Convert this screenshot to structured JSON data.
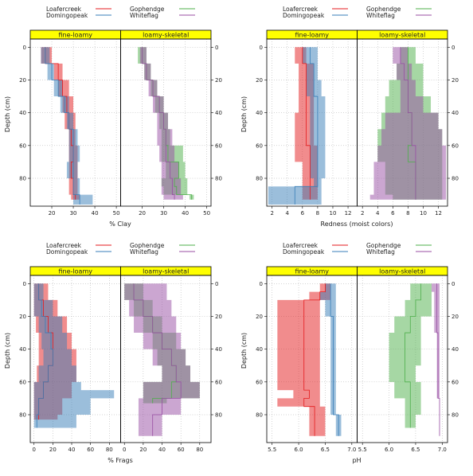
{
  "colors": {
    "Loafercreek": "#e41a1c",
    "Domingopeak": "#377eb8",
    "Gophendge": "#4daf4a",
    "Whiteflag": "#984ea3",
    "strip": "#ffff00"
  },
  "legend": {
    "left": [
      "Loafercreek",
      "Domingopeak"
    ],
    "right": [
      "Gophendge",
      "Whiteflag"
    ]
  },
  "chart_data": [
    {
      "type": "area",
      "xlabel": "% Clay",
      "ylabel": "Depth (cm)",
      "xticks": [
        20,
        30,
        40,
        50
      ],
      "xlim": [
        10,
        52
      ],
      "ylim": [
        97,
        -5
      ],
      "yticks": [
        0,
        20,
        40,
        60,
        80
      ],
      "panels": [
        {
          "strip": "fine-loamy",
          "series": [
            {
              "name": "Loafercreek",
              "depth": [
                0,
                10,
                20,
                30,
                40,
                50,
                60,
                70,
                80,
                90
              ],
              "lo": [
                15,
                21,
                23,
                25,
                26,
                28,
                28,
                28,
                28,
                29
              ],
              "hi": [
                20,
                25,
                28,
                30,
                31,
                31,
                32,
                32,
                32,
                33
              ],
              "med": [
                17,
                23,
                25,
                27,
                28,
                29,
                30,
                29,
                30,
                31
              ]
            },
            {
              "name": "Domingopeak",
              "depth": [
                0,
                10,
                20,
                30,
                40,
                50,
                60,
                70,
                80,
                90,
                93
              ],
              "lo": [
                15,
                18,
                21,
                24,
                27,
                28,
                28,
                27,
                30,
                30,
                30
              ],
              "hi": [
                19,
                21,
                25,
                28,
                30,
                32,
                33,
                32,
                33,
                39,
                39
              ],
              "med": [
                17,
                20,
                23,
                26,
                28,
                30,
                30,
                30,
                30,
                33,
                33
              ]
            }
          ]
        },
        {
          "strip": "loamy-skeletal",
          "series": [
            {
              "name": "Gophendge",
              "depth": [
                0,
                10,
                20,
                30,
                40,
                50,
                60,
                70,
                80,
                85,
                90
              ],
              "lo": [
                18,
                21,
                24,
                26,
                28,
                29,
                29,
                31,
                29,
                30,
                42
              ],
              "hi": [
                22,
                24,
                27,
                30,
                32,
                33,
                39,
                40,
                41,
                41,
                44
              ],
              "med": [
                20,
                22,
                25,
                28,
                30,
                31,
                32,
                37,
                35,
                36,
                43
              ]
            },
            {
              "name": "Whiteflag",
              "depth": [
                0,
                10,
                20,
                30,
                40,
                50,
                60,
                70,
                80,
                90
              ],
              "lo": [
                19,
                21,
                23,
                25,
                27,
                27,
                28,
                29,
                29,
                30
              ],
              "hi": [
                22,
                24,
                27,
                30,
                32,
                34,
                35,
                37,
                38,
                39
              ],
              "med": [
                20,
                22,
                25,
                28,
                30,
                31,
                31,
                33,
                34,
                35
              ]
            }
          ]
        }
      ]
    },
    {
      "type": "area",
      "xlabel": "Redness (moist colors)",
      "ylabel": "Depth (cm)",
      "xticks": [
        2,
        4,
        6,
        8,
        10,
        12
      ],
      "xlim": [
        1.3,
        13.2
      ],
      "ylim": [
        97,
        -5
      ],
      "yticks": [
        0,
        20,
        40,
        60,
        80
      ],
      "panels": [
        {
          "strip": "fine-loamy",
          "series": [
            {
              "name": "Loafercreek",
              "depth": [
                0,
                10,
                20,
                30,
                40,
                50,
                60,
                70,
                80,
                90
              ],
              "lo": [
                5,
                5.5,
                5.5,
                5.5,
                5,
                5,
                5,
                6,
                6,
                6
              ],
              "hi": [
                6.5,
                7.5,
                7.5,
                7.5,
                7.5,
                7.5,
                8,
                8,
                8,
                8
              ],
              "med": [
                6,
                6.5,
                6.5,
                6.5,
                6.5,
                6.5,
                7,
                7,
                7,
                7
              ]
            },
            {
              "name": "Domingopeak",
              "depth": [
                0,
                10,
                20,
                30,
                40,
                50,
                60,
                70,
                80,
                85,
                90,
                93
              ],
              "lo": [
                6,
                6.5,
                6.5,
                7,
                7,
                7,
                7,
                7,
                7.5,
                1.5,
                1.5,
                1.5
              ],
              "hi": [
                8,
                8,
                8.5,
                9,
                9,
                9,
                9,
                9,
                8.5,
                8.5,
                8.5,
                8.5
              ],
              "med": [
                7,
                7.5,
                7.5,
                8,
                8,
                8,
                8,
                8,
                8,
                5,
                5,
                5
              ]
            }
          ]
        },
        {
          "strip": "loamy-skeletal",
          "series": [
            {
              "name": "Gophendge",
              "depth": [
                0,
                10,
                20,
                30,
                40,
                50,
                60,
                70,
                80,
                90
              ],
              "lo": [
                7,
                6.5,
                5.5,
                5,
                4.5,
                4,
                4,
                5,
                5,
                6
              ],
              "hi": [
                9,
                10,
                10,
                11,
                12,
                12.5,
                12.5,
                12.5,
                12.5,
                12.5
              ],
              "med": [
                8,
                8,
                8,
                8,
                8.5,
                8.5,
                8,
                9,
                9,
                9
              ]
            },
            {
              "name": "Whiteflag",
              "depth": [
                0,
                10,
                20,
                30,
                40,
                50,
                60,
                70,
                80,
                90
              ],
              "lo": [
                6,
                6.5,
                7,
                7,
                5,
                4.5,
                4,
                3.5,
                3.5,
                3
              ],
              "hi": [
                8,
                8.5,
                9,
                10,
                12,
                12.5,
                13,
                13,
                13,
                13
              ],
              "med": [
                7,
                7.5,
                8,
                8,
                8.5,
                8.5,
                9,
                9,
                9,
                9
              ]
            }
          ]
        }
      ]
    },
    {
      "type": "area",
      "xlabel": "% Frags",
      "ylabel": "Depth (cm)",
      "xticks": [
        0,
        20,
        40,
        60,
        80
      ],
      "xlim": [
        -4,
        92
      ],
      "ylim": [
        97,
        -5
      ],
      "yticks": [
        0,
        20,
        40,
        60,
        80
      ],
      "panels": [
        {
          "strip": "fine-loamy",
          "series": [
            {
              "name": "Loafercreek",
              "depth": [
                0,
                10,
                20,
                30,
                40,
                50,
                60,
                70,
                80
              ],
              "lo": [
                0,
                0,
                2,
                5,
                5,
                3,
                0,
                0,
                0
              ],
              "hi": [
                15,
                25,
                35,
                40,
                45,
                45,
                40,
                30,
                25
              ],
              "med": [
                5,
                10,
                15,
                20,
                20,
                15,
                10,
                5,
                5
              ]
            },
            {
              "name": "Domingopeak",
              "depth": [
                0,
                10,
                20,
                30,
                40,
                50,
                60,
                65,
                70,
                80,
                85
              ],
              "lo": [
                0,
                0,
                5,
                8,
                10,
                5,
                0,
                0,
                0,
                0,
                0
              ],
              "hi": [
                10,
                20,
                30,
                35,
                40,
                45,
                50,
                85,
                60,
                45,
                45
              ],
              "med": [
                5,
                8,
                12,
                18,
                20,
                15,
                10,
                10,
                5,
                3,
                3
              ]
            }
          ]
        },
        {
          "strip": "loamy-skeletal",
          "series": [
            {
              "name": "Gophendge",
              "depth": [
                0,
                10,
                20,
                30,
                40,
                50,
                60,
                70
              ],
              "lo": [
                0,
                10,
                20,
                30,
                35,
                40,
                20,
                20
              ],
              "hi": [
                20,
                30,
                40,
                55,
                65,
                70,
                80,
                45
              ],
              "med": [
                10,
                20,
                30,
                40,
                50,
                55,
                50,
                30
              ]
            },
            {
              "name": "Whiteflag",
              "depth": [
                0,
                10,
                20,
                30,
                40,
                50,
                60,
                70,
                80,
                90
              ],
              "lo": [
                0,
                5,
                10,
                20,
                30,
                40,
                20,
                15,
                15,
                15
              ],
              "hi": [
                45,
                50,
                55,
                60,
                65,
                70,
                80,
                60,
                40,
                40
              ],
              "med": [
                10,
                20,
                30,
                40,
                50,
                55,
                60,
                40,
                30,
                30
              ]
            }
          ]
        }
      ]
    },
    {
      "type": "area",
      "xlabel": "pH",
      "ylabel": "Depth (cm)",
      "xticks": [
        5.5,
        6.0,
        6.5,
        7.0
      ],
      "xlim": [
        5.4,
        7.1
      ],
      "ylim": [
        97,
        -5
      ],
      "yticks": [
        0,
        20,
        40,
        60,
        80
      ],
      "panels": [
        {
          "strip": "fine-loamy",
          "series": [
            {
              "name": "Loafercreek",
              "depth": [
                0,
                5,
                10,
                20,
                30,
                40,
                50,
                60,
                65,
                70,
                75,
                80,
                90
              ],
              "lo": [
                6.4,
                6.2,
                5.6,
                5.6,
                5.6,
                5.6,
                5.6,
                5.6,
                5.9,
                5.6,
                6.2,
                6.2,
                6.2
              ],
              "hi": [
                6.6,
                6.6,
                6.4,
                6.4,
                6.4,
                6.4,
                6.4,
                6.4,
                6.4,
                6.4,
                6.5,
                6.5,
                6.5
              ],
              "med": [
                6.5,
                6.4,
                6.1,
                6.1,
                6.1,
                6.1,
                6.1,
                6.1,
                6.2,
                6.1,
                6.3,
                6.3,
                6.3
              ]
            },
            {
              "name": "Domingopeak",
              "depth": [
                0,
                5,
                10,
                20,
                30,
                40,
                50,
                60,
                70,
                80,
                90
              ],
              "lo": [
                6.5,
                6.4,
                6.5,
                6.6,
                6.6,
                6.6,
                6.6,
                6.6,
                6.6,
                6.7,
                6.7
              ],
              "hi": [
                6.7,
                6.7,
                6.7,
                6.7,
                6.7,
                6.7,
                6.7,
                6.7,
                6.7,
                6.8,
                6.8
              ],
              "med": [
                6.6,
                6.6,
                6.6,
                6.65,
                6.65,
                6.65,
                6.65,
                6.65,
                6.65,
                6.75,
                6.75
              ]
            }
          ]
        },
        {
          "strip": "loamy-skeletal",
          "series": [
            {
              "name": "Gophendge",
              "depth": [
                0,
                10,
                20,
                30,
                40,
                50,
                60,
                70,
                80,
                85
              ],
              "lo": [
                6.4,
                6.3,
                6.1,
                6.0,
                6.0,
                6.0,
                6.1,
                6.3,
                6.3,
                6.3
              ],
              "hi": [
                6.8,
                6.8,
                6.6,
                6.6,
                6.6,
                6.5,
                6.6,
                6.6,
                6.5,
                6.5
              ],
              "med": [
                6.6,
                6.5,
                6.4,
                6.3,
                6.3,
                6.3,
                6.4,
                6.4,
                6.4,
                6.4
              ]
            },
            {
              "name": "Whiteflag",
              "depth": [
                0,
                5,
                10,
                20,
                30,
                40,
                50,
                60,
                70,
                80,
                90
              ],
              "lo": [
                6.8,
                6.85,
                6.85,
                6.85,
                6.9,
                6.9,
                6.9,
                6.9,
                6.95,
                6.95,
                6.95
              ],
              "hi": [
                6.95,
                6.95,
                6.95,
                6.95,
                6.95,
                6.95,
                6.95,
                6.95,
                6.95,
                6.95,
                6.95
              ],
              "med": [
                6.9,
                6.9,
                6.9,
                6.9,
                6.92,
                6.92,
                6.92,
                6.92,
                6.95,
                6.95,
                6.95
              ]
            }
          ]
        }
      ]
    }
  ]
}
